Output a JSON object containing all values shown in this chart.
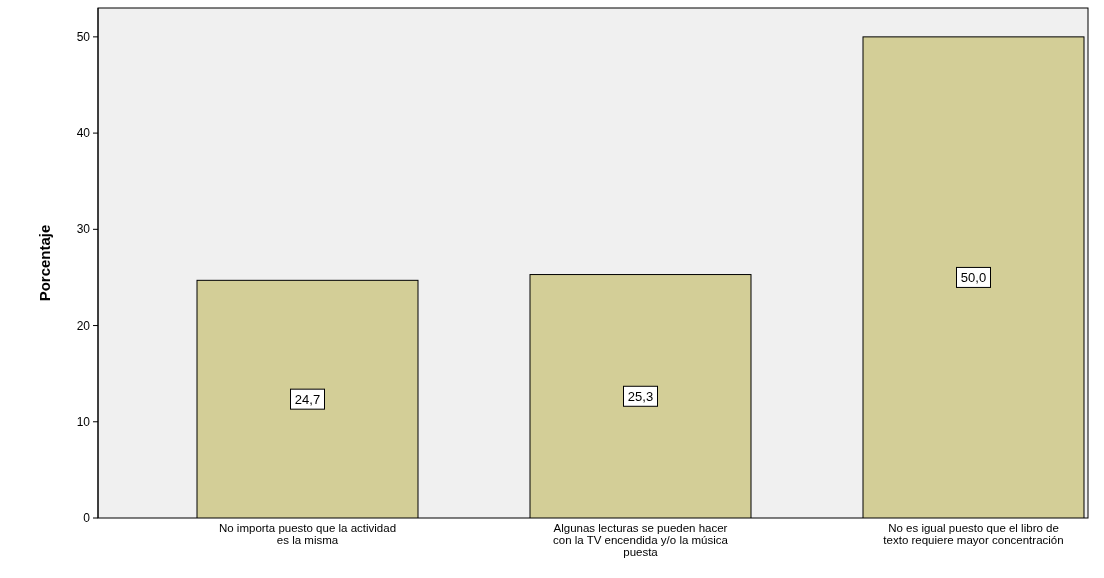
{
  "chart_data": {
    "type": "bar",
    "ylabel": "Porcentaje",
    "categories": [
      "No importa puesto que la actividad es la misma",
      "Algunas lecturas se pueden hacer con la TV encendida y/o la música puesta",
      "No es igual puesto que el libro de texto requiere mayor concentración"
    ],
    "values": [
      24.7,
      25.3,
      50.0
    ],
    "value_labels": [
      "24,7",
      "25,3",
      "50,0"
    ],
    "color": "#d3ce97",
    "ylim": [
      0,
      53
    ],
    "yticks": [
      0,
      10,
      20,
      30,
      40,
      50
    ],
    "grid": false
  }
}
